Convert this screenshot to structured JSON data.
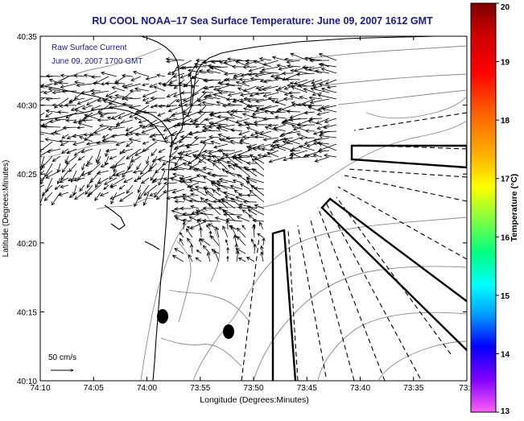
{
  "title": "RU COOL  NOAA–17  Sea Surface Temperature:  June 09, 2007 1612 GMT",
  "overlay": {
    "line1": "Raw Surface Current",
    "line2": "June 09, 2007 1700 GMT"
  },
  "scale_label": "50 cm/s",
  "axes": {
    "xlabel": "Longitude (Degrees:Minutes)",
    "ylabel": "Latitude (Degrees:Minutes)",
    "xticks": [
      "74:10",
      "74:05",
      "74:00",
      "73:55",
      "73:50",
      "73:45",
      "73:40",
      "73:35",
      "73:3"
    ],
    "yticks": [
      "40:35",
      "40:30",
      "40:25",
      "40:20",
      "40:15",
      "40:10"
    ]
  },
  "colorbar": {
    "label": "Temperature (°C)",
    "ticks": [
      "20",
      "19",
      "18",
      "17",
      "16",
      "15",
      "14",
      "13"
    ]
  },
  "colors": {
    "title": "#1a1a8c",
    "overlay_text": "#1a1a8c",
    "plot_background": "#ffffff",
    "contours": "#7f7f7f",
    "coast": "#000000"
  }
}
